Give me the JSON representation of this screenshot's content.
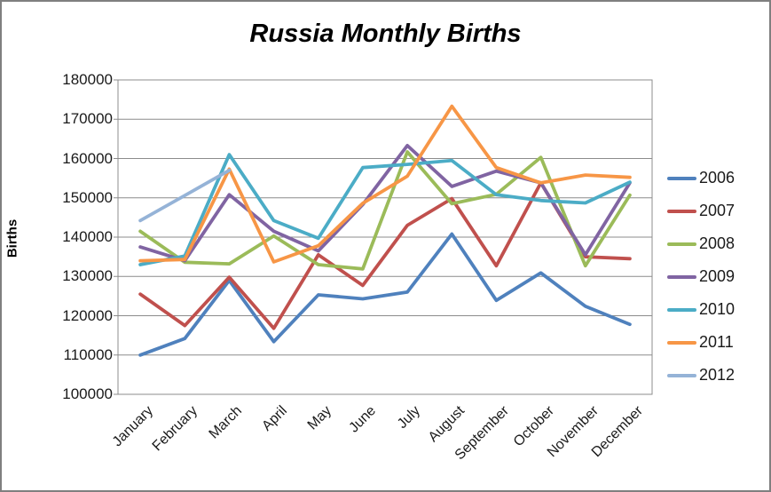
{
  "window": {
    "background": "#ffffff",
    "border_color": "#7f7f7f"
  },
  "chart_data": {
    "type": "line",
    "title": "Russia Monthly Births",
    "ylabel": "Births",
    "xlabel": "",
    "ylim": [
      100000,
      180000
    ],
    "y_tick_step": 10000,
    "y_tick_labels": [
      "180000",
      "170000",
      "160000",
      "150000",
      "140000",
      "130000",
      "120000",
      "110000",
      "100000"
    ],
    "grid": true,
    "grid_color": "#8c8c8c",
    "legend_position": "right",
    "categories": [
      "January",
      "February",
      "March",
      "April",
      "May",
      "June",
      "July",
      "August",
      "September",
      "October",
      "November",
      "December"
    ],
    "series": [
      {
        "name": "2006",
        "color": "#4F81BD",
        "values": [
          110000,
          114200,
          129000,
          113400,
          125300,
          124300,
          126000,
          140800,
          123900,
          130900,
          122400,
          117800
        ]
      },
      {
        "name": "2007",
        "color": "#C0504D",
        "values": [
          125500,
          117500,
          129800,
          116800,
          135500,
          127700,
          143000,
          149800,
          132700,
          153800,
          135000,
          134500
        ]
      },
      {
        "name": "2008",
        "color": "#9BBB59",
        "values": [
          141500,
          133600,
          133200,
          140300,
          133000,
          131900,
          161700,
          148500,
          150900,
          160300,
          132700,
          150700
        ]
      },
      {
        "name": "2009",
        "color": "#8064A2",
        "values": [
          137500,
          134000,
          150800,
          141500,
          136500,
          148300,
          163300,
          152900,
          156800,
          153800,
          135500,
          153800
        ]
      },
      {
        "name": "2010",
        "color": "#4BACC6",
        "values": [
          133000,
          135200,
          161000,
          144200,
          139700,
          157700,
          158500,
          159500,
          150800,
          149300,
          148700,
          154000
        ]
      },
      {
        "name": "2011",
        "color": "#F79646",
        "values": [
          134000,
          134300,
          157300,
          133700,
          137800,
          148600,
          155500,
          173300,
          157700,
          153800,
          155800,
          155200
        ]
      },
      {
        "name": "2012",
        "color": "#95B3D7",
        "values": [
          144200,
          150600,
          157000
        ]
      }
    ]
  }
}
